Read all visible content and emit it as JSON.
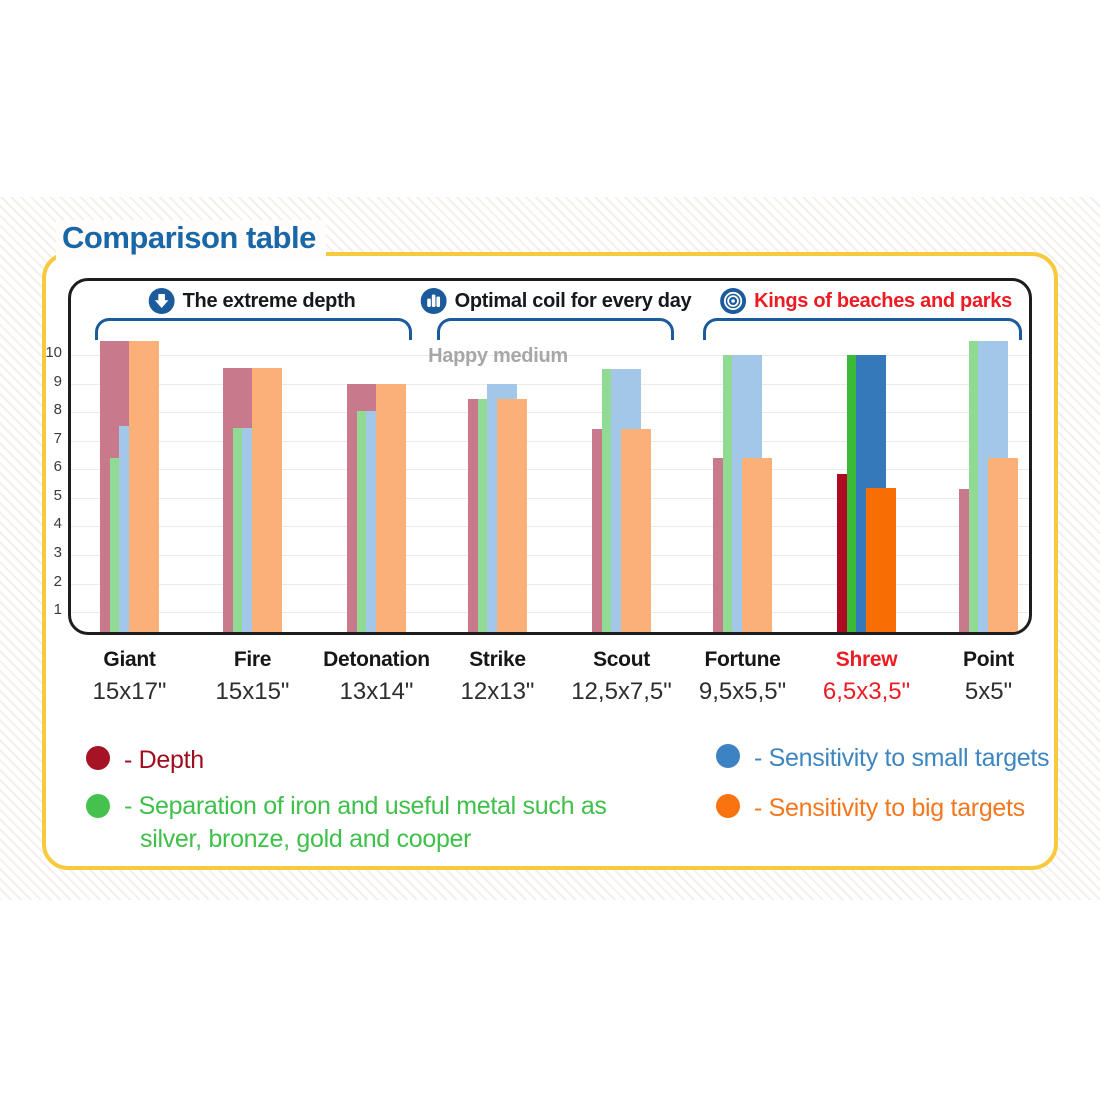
{
  "chart_data": {
    "type": "bar",
    "title": "Comparison table",
    "watermark": "Happy medium",
    "yticks": [
      1,
      2,
      3,
      4,
      5,
      6,
      7,
      8,
      9,
      10
    ],
    "ylim": [
      0,
      10.6
    ],
    "grid": true,
    "legend_position": "bottom",
    "group_annotations": [
      {
        "label": "The extreme depth",
        "icon": "down-arrow-icon",
        "color": "#15191d"
      },
      {
        "label": "Optimal coil for every day",
        "icon": "coil-bars-icon",
        "color": "#15191d"
      },
      {
        "label": "Kings of beaches and parks",
        "icon": "target-icon",
        "color": "#ed1c24"
      }
    ],
    "series": [
      {
        "name": "Depth",
        "muted_color": "#c9798c",
        "strong_color": "#ae0a21"
      },
      {
        "name": "Separation of iron and useful metal",
        "muted_color": "#90da93",
        "strong_color": "#3aba37"
      },
      {
        "name": "Sensitivity to small targets",
        "muted_color": "#a2c7e8",
        "strong_color": "#3579ba"
      },
      {
        "name": "Sensitivity to big targets",
        "muted_color": "#fbb077",
        "strong_color": "#f96d05"
      }
    ],
    "categories": [
      {
        "name": "Giant",
        "size": "15x17\"",
        "highlight": false,
        "values": [
          10.5,
          6.4,
          7.5,
          10.5
        ]
      },
      {
        "name": "Fire",
        "size": "15x15\"",
        "highlight": false,
        "values": [
          9.55,
          7.45,
          7.45,
          9.55
        ]
      },
      {
        "name": "Detonation",
        "size": "13x14\"",
        "highlight": false,
        "values": [
          9,
          8.05,
          8.05,
          9
        ]
      },
      {
        "name": "Strike",
        "size": "12x13\"",
        "highlight": false,
        "values": [
          8.45,
          8.45,
          9,
          8.45
        ]
      },
      {
        "name": "Scout",
        "size": "12,5x7,5\"",
        "highlight": false,
        "values": [
          7.4,
          9.5,
          9.5,
          7.4
        ]
      },
      {
        "name": "Fortune",
        "size": "9,5x5,5\"",
        "highlight": false,
        "values": [
          6.4,
          10,
          10,
          6.4
        ]
      },
      {
        "name": "Shrew",
        "size": "6,5x3,5\"",
        "highlight": true,
        "values": [
          5.85,
          10,
          10,
          5.35
        ]
      },
      {
        "name": "Point",
        "size": "5x5\"",
        "highlight": false,
        "values": [
          5.3,
          10.5,
          10.5,
          6.4
        ]
      }
    ],
    "highlight_label_color": "#ed1c24",
    "category_label_color": "#161616"
  },
  "style": {
    "title_color": "#1a67a8",
    "card_border_color": "#f7ca3e",
    "bracket_color": "#1b5a9b",
    "icon_circle_color": "#1b5a9b"
  },
  "legend": {
    "items": [
      {
        "label": "- Depth",
        "dot_color": "#a51324",
        "text_color": "#a10d20"
      },
      {
        "label": "- Separation of iron and useful metal such as silver, bronze, gold and cooper",
        "dot_color": "#45c14e",
        "text_color": "#3fc04a"
      },
      {
        "label": "- Sensitivity to small targets",
        "dot_color": "#3d83c3",
        "text_color": "#3e86c0"
      },
      {
        "label": "- Sensitivity to big targets",
        "dot_color": "#f97311",
        "text_color": "#f3771e"
      }
    ]
  }
}
